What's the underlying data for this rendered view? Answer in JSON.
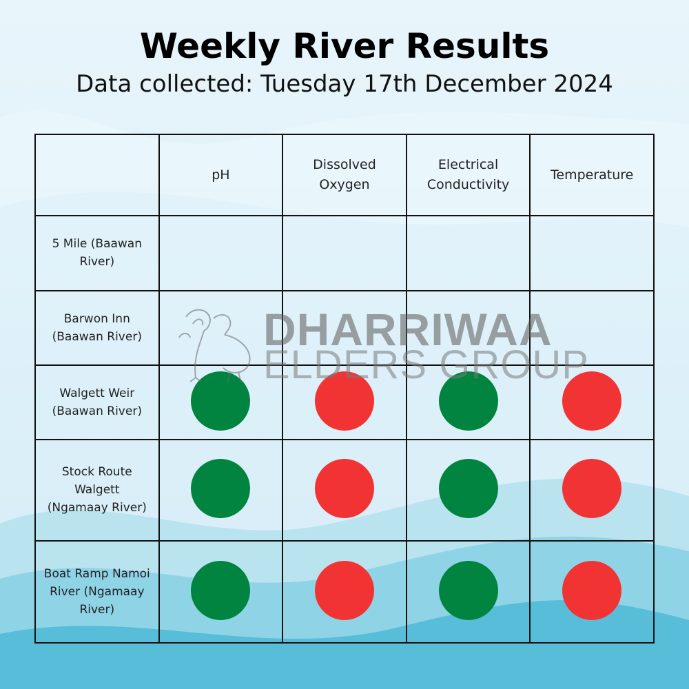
{
  "title": "Weekly River Results",
  "subtitle": "Data collected: Tuesday 17th December 2024",
  "columns": [
    "",
    "pH",
    "Dissolved Oxygen",
    "Electrical Conductivity",
    "Temperature"
  ],
  "rows": [
    {
      "site": "5 Mile (Baawan River)",
      "results": [
        "",
        "",
        "",
        ""
      ]
    },
    {
      "site": "Barwon Inn (Baawan River)",
      "results": [
        "",
        "",
        "",
        ""
      ]
    },
    {
      "site": "Walgett Weir (Baawan River)",
      "results": [
        "green",
        "red",
        "green",
        "red"
      ]
    },
    {
      "site": "Stock Route Walgett (Ngamaay River)",
      "results": [
        "green",
        "red",
        "green",
        "red"
      ]
    },
    {
      "site": "Boat Ramp Namoi River (Ngamaay River)",
      "results": [
        "green",
        "red",
        "green",
        "red"
      ]
    }
  ],
  "colors": {
    "green": "#00843f",
    "red": "#f23333",
    "background": "#dff0f9",
    "wave_light": "#b9e3ef",
    "wave_mid": "#8fd3e6",
    "wave_dark": "#58bdd8"
  },
  "watermark": {
    "line1": "DHARRIWAA",
    "line2": "ELDERS GROUP",
    "icon": "emu-icon"
  }
}
